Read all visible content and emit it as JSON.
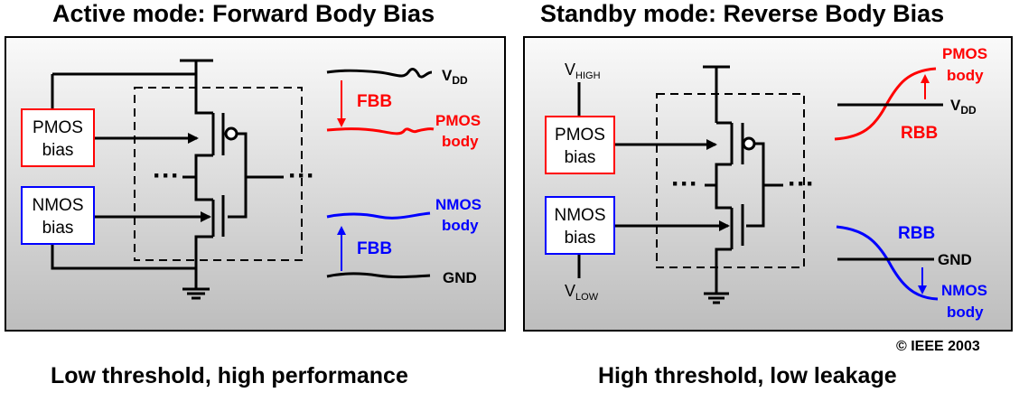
{
  "left_panel": {
    "title": "Active mode: Forward Body Bias",
    "caption": "Low threshold, high performance",
    "pmos_bias": [
      "PMOS",
      "bias"
    ],
    "nmos_bias": [
      "NMOS",
      "bias"
    ],
    "vdd": {
      "main": "V",
      "sub": "DD"
    },
    "fbb_top": "FBB",
    "pmos_body": [
      "PMOS",
      "body"
    ],
    "nmos_body": [
      "NMOS",
      "body"
    ],
    "fbb_bottom": "FBB",
    "gnd": "GND"
  },
  "right_panel": {
    "title": "Standby mode: Reverse Body Bias",
    "caption": "High threshold, low leakage",
    "vhigh": {
      "main": "V",
      "sub": "HIGH"
    },
    "vlow": {
      "main": "V",
      "sub": "LOW"
    },
    "pmos_bias": [
      "PMOS",
      "bias"
    ],
    "nmos_bias": [
      "NMOS",
      "bias"
    ],
    "pmos_body": [
      "PMOS",
      "body"
    ],
    "vdd": {
      "main": "V",
      "sub": "DD"
    },
    "rbb_top": "RBB",
    "rbb_bottom": "RBB",
    "gnd": "GND",
    "nmos_body": [
      "NMOS",
      "body"
    ]
  },
  "dots": "···",
  "copyright": "© IEEE 2003",
  "colors": {
    "pmos": "#ff0000",
    "nmos": "#0000ff",
    "wire": "#000000"
  }
}
